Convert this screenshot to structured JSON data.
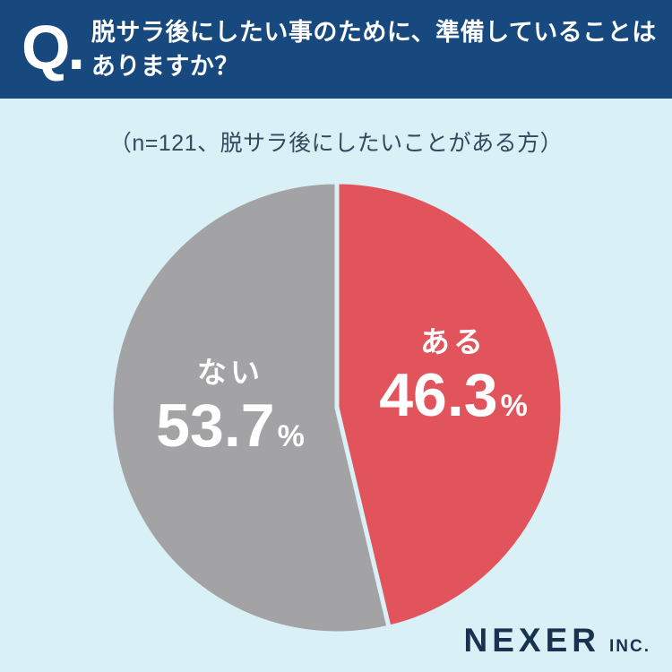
{
  "header": {
    "q_mark": "Q.",
    "title_line1": "脱サラ後にしたい事のために、準備していることは",
    "title_line2": "ありますか？"
  },
  "subtitle": "（n=121、脱サラ後にしたいことがある方）",
  "chart_data": {
    "type": "pie",
    "title": "脱サラ後にしたい事のために、準備していることはありますか？",
    "note": "（n=121、脱サラ後にしたいことがある方）",
    "sample_size": 121,
    "start_angle_deg": 0,
    "direction": "clockwise",
    "legend": "none",
    "labels_inside": true,
    "slices": [
      {
        "key": "aru",
        "label": "ある",
        "value": 46.3,
        "display_value": "46.3",
        "unit": "%",
        "color": "#e2545b",
        "text_color": "#ffffff"
      },
      {
        "key": "nai",
        "label": "ない",
        "value": 53.7,
        "display_value": "53.7",
        "unit": "%",
        "color": "#a3a2a4",
        "text_color": "#ffffff"
      }
    ]
  },
  "footer": {
    "brand": "NEXER",
    "brand_suffix": "INC."
  },
  "colors": {
    "header_bg": "#17497e",
    "background": "#d9f1f6",
    "accent_red": "#e2545b",
    "slice_gray": "#a3a2a4",
    "subtitle_text": "#34495e",
    "brand_navy": "#1b3150",
    "label_white": "#ffffff"
  }
}
